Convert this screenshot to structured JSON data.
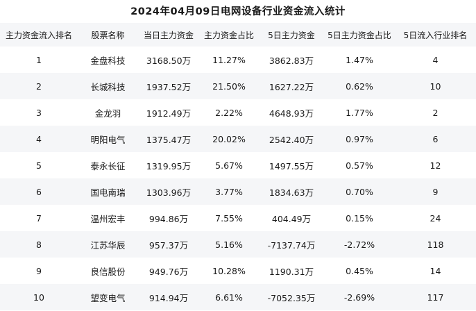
{
  "chart_data": {
    "type": "table",
    "title": "2024年04月09日电网设备行业资金流入统计",
    "columns": [
      "主力资金流入排名",
      "股票名称",
      "当日主力资金",
      "主力资金占比",
      "5日主力资金",
      "5日主力资金占比",
      "5日流入行业排名"
    ],
    "rows": [
      [
        "1",
        "金盘科技",
        "3168.50万",
        "11.27%",
        "3862.83万",
        "1.47%",
        "4"
      ],
      [
        "2",
        "长城科技",
        "1937.52万",
        "21.50%",
        "1627.22万",
        "0.62%",
        "10"
      ],
      [
        "3",
        "金龙羽",
        "1912.49万",
        "2.22%",
        "4648.93万",
        "1.77%",
        "2"
      ],
      [
        "4",
        "明阳电气",
        "1375.47万",
        "20.02%",
        "2542.40万",
        "0.97%",
        "6"
      ],
      [
        "5",
        "泰永长征",
        "1319.95万",
        "5.67%",
        "1497.55万",
        "0.57%",
        "12"
      ],
      [
        "6",
        "国电南瑞",
        "1303.96万",
        "3.77%",
        "1834.63万",
        "0.70%",
        "9"
      ],
      [
        "7",
        "温州宏丰",
        "994.86万",
        "7.55%",
        "404.49万",
        "0.15%",
        "24"
      ],
      [
        "8",
        "江苏华辰",
        "957.37万",
        "5.16%",
        "-7137.74万",
        "-2.72%",
        "118"
      ],
      [
        "9",
        "良信股份",
        "949.76万",
        "10.28%",
        "1190.31万",
        "0.45%",
        "14"
      ],
      [
        "10",
        "望变电气",
        "914.94万",
        "6.61%",
        "-7052.35万",
        "-2.69%",
        "117"
      ]
    ],
    "layout": {
      "zebra_striping": true,
      "stripe_start_row": 2,
      "last_row_clipped": true
    }
  },
  "colors": {
    "background": "#ffffff",
    "stripe": "#f5f6f8",
    "header_bg": "#f5f6f8",
    "text": "#1a1a1a"
  }
}
